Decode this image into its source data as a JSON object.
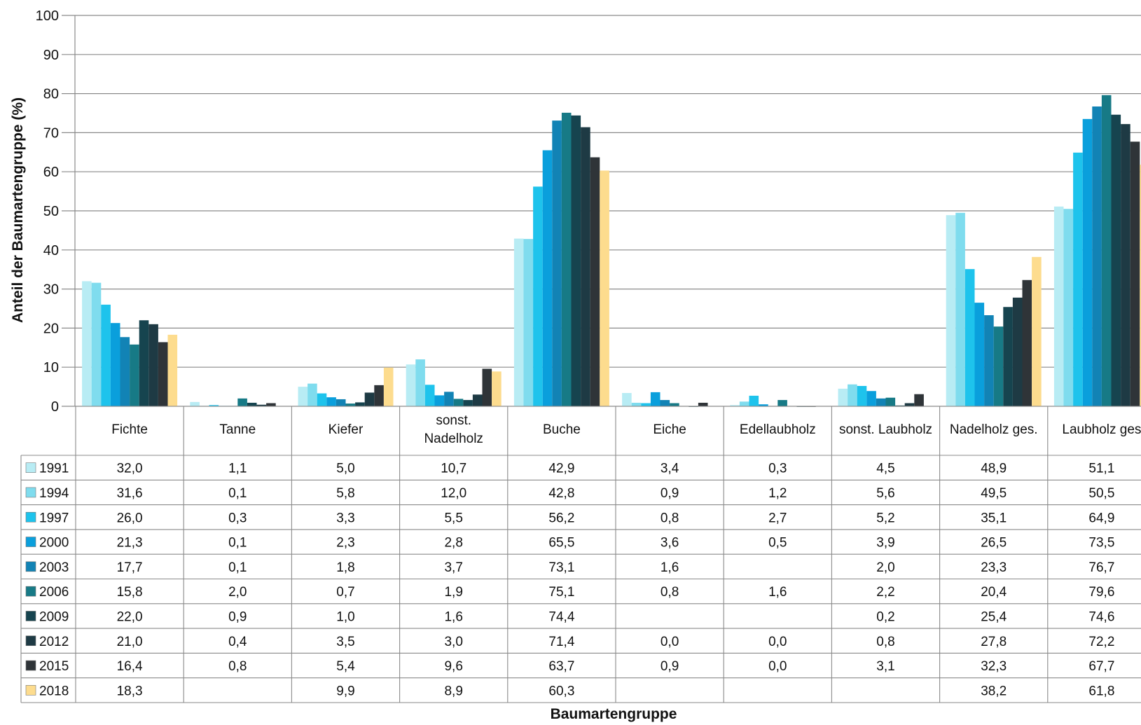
{
  "chart_data": {
    "type": "bar",
    "ylabel": "Anteil der Baumartengruppe (%)",
    "xlabel": "Baumartengruppe",
    "ylim": [
      0,
      100
    ],
    "yticks": [
      0,
      10,
      20,
      30,
      40,
      50,
      60,
      70,
      80,
      90,
      100
    ],
    "grid": true,
    "legend": "data-table-left",
    "categories": [
      "Fichte",
      "Tanne",
      "Kiefer",
      "sonst. Nadelholz",
      "Buche",
      "Eiche",
      "Edellaubholz",
      "sonst. Laubholz",
      "Nadelholz ges.",
      "Laubholz ges"
    ],
    "category_lines": [
      [
        "Fichte"
      ],
      [
        "Tanne"
      ],
      [
        "Kiefer"
      ],
      [
        "sonst.",
        "Nadelholz"
      ],
      [
        "Buche"
      ],
      [
        "Eiche"
      ],
      [
        "Edellaubholz"
      ],
      [
        "sonst. Laubholz"
      ],
      [
        "Nadelholz ges."
      ],
      [
        "Laubholz ges"
      ]
    ],
    "series": [
      {
        "name": "1991",
        "color": "#b8ecf4",
        "values": [
          32.0,
          1.1,
          5.0,
          10.7,
          42.9,
          3.4,
          0.3,
          4.5,
          48.9,
          51.1
        ],
        "labels": [
          "32,0",
          "1,1",
          "5,0",
          "10,7",
          "42,9",
          "3,4",
          "0,3",
          "4,5",
          "48,9",
          "51,1"
        ]
      },
      {
        "name": "1994",
        "color": "#7fdcee",
        "values": [
          31.6,
          0.1,
          5.8,
          12.0,
          42.8,
          0.9,
          1.2,
          5.6,
          49.5,
          50.5
        ],
        "labels": [
          "31,6",
          "0,1",
          "5,8",
          "12,0",
          "42,8",
          "0,9",
          "1,2",
          "5,6",
          "49,5",
          "50,5"
        ]
      },
      {
        "name": "1997",
        "color": "#1ec3ec",
        "values": [
          26.0,
          0.3,
          3.3,
          5.5,
          56.2,
          0.8,
          2.7,
          5.2,
          35.1,
          64.9
        ],
        "labels": [
          "26,0",
          "0,3",
          "3,3",
          "5,5",
          "56,2",
          "0,8",
          "2,7",
          "5,2",
          "35,1",
          "64,9"
        ]
      },
      {
        "name": "2000",
        "color": "#0a9fdc",
        "values": [
          21.3,
          0.1,
          2.3,
          2.8,
          65.5,
          3.6,
          0.5,
          3.9,
          26.5,
          73.5
        ],
        "labels": [
          "21,3",
          "0,1",
          "2,3",
          "2,8",
          "65,5",
          "3,6",
          "0,5",
          "3,9",
          "26,5",
          "73,5"
        ]
      },
      {
        "name": "2003",
        "color": "#1283b5",
        "values": [
          17.7,
          0.1,
          1.8,
          3.7,
          73.1,
          1.6,
          null,
          2.0,
          23.3,
          76.7
        ],
        "labels": [
          "17,7",
          "0,1",
          "1,8",
          "3,7",
          "73,1",
          "1,6",
          "",
          "2,0",
          "23,3",
          "76,7"
        ]
      },
      {
        "name": "2006",
        "color": "#177a86",
        "values": [
          15.8,
          2.0,
          0.7,
          1.9,
          75.1,
          0.8,
          1.6,
          2.2,
          20.4,
          79.6
        ],
        "labels": [
          "15,8",
          "2,0",
          "0,7",
          "1,9",
          "75,1",
          "0,8",
          "1,6",
          "2,2",
          "20,4",
          "79,6"
        ]
      },
      {
        "name": "2009",
        "color": "#16444f",
        "values": [
          22.0,
          0.9,
          1.0,
          1.6,
          74.4,
          null,
          null,
          0.2,
          25.4,
          74.6
        ],
        "labels": [
          "22,0",
          "0,9",
          "1,0",
          "1,6",
          "74,4",
          "",
          "",
          "0,2",
          "25,4",
          "74,6"
        ]
      },
      {
        "name": "2012",
        "color": "#1e3a44",
        "values": [
          21.0,
          0.4,
          3.5,
          3.0,
          71.4,
          0.0,
          0.0,
          0.8,
          27.8,
          72.2
        ],
        "labels": [
          "21,0",
          "0,4",
          "3,5",
          "3,0",
          "71,4",
          "0,0",
          "0,0",
          "0,8",
          "27,8",
          "72,2"
        ]
      },
      {
        "name": "2015",
        "color": "#2f3438",
        "values": [
          16.4,
          0.8,
          5.4,
          9.6,
          63.7,
          0.9,
          0.0,
          3.1,
          32.3,
          67.7
        ],
        "labels": [
          "16,4",
          "0,8",
          "5,4",
          "9,6",
          "63,7",
          "0,9",
          "0,0",
          "3,1",
          "32,3",
          "67,7"
        ]
      },
      {
        "name": "2018",
        "color": "#fddc8e",
        "values": [
          18.3,
          null,
          9.9,
          8.9,
          60.3,
          null,
          null,
          null,
          38.2,
          61.8
        ],
        "labels": [
          "18,3",
          "",
          "9,9",
          "8,9",
          "60,3",
          "",
          "",
          "",
          "38,2",
          "61,8"
        ]
      }
    ]
  }
}
